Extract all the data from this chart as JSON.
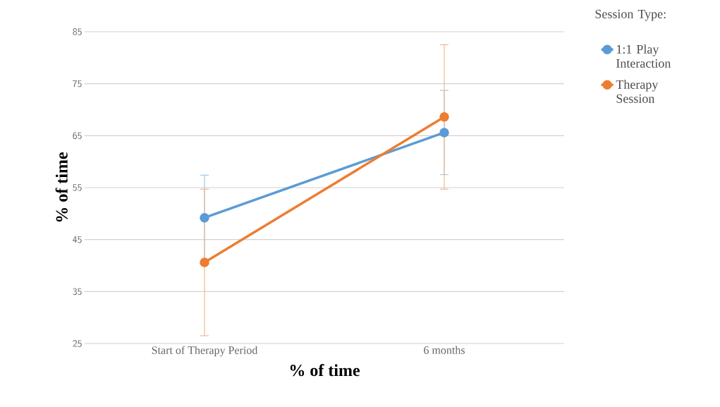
{
  "chart_data": {
    "type": "line",
    "xlabel": "% of time",
    "ylabel": "% of time",
    "legend_title": "Session Type:",
    "categories": [
      "Start of Therapy Period",
      "6 months"
    ],
    "series": [
      {
        "name": "1:1 Play Interaction",
        "color": "#5b9bd5",
        "values": [
          49.2,
          65.6
        ],
        "errors": [
          8.2,
          8.1
        ]
      },
      {
        "name": "Therapy Session",
        "color": "#ed7d31",
        "values": [
          40.6,
          68.6
        ],
        "errors": [
          14.1,
          13.9
        ]
      }
    ],
    "ylim": [
      25,
      85
    ],
    "yticks": [
      25,
      35,
      45,
      55,
      65,
      75,
      85
    ],
    "grid": "y",
    "legend": "top right",
    "marker": "circle",
    "line_style": "solid"
  }
}
